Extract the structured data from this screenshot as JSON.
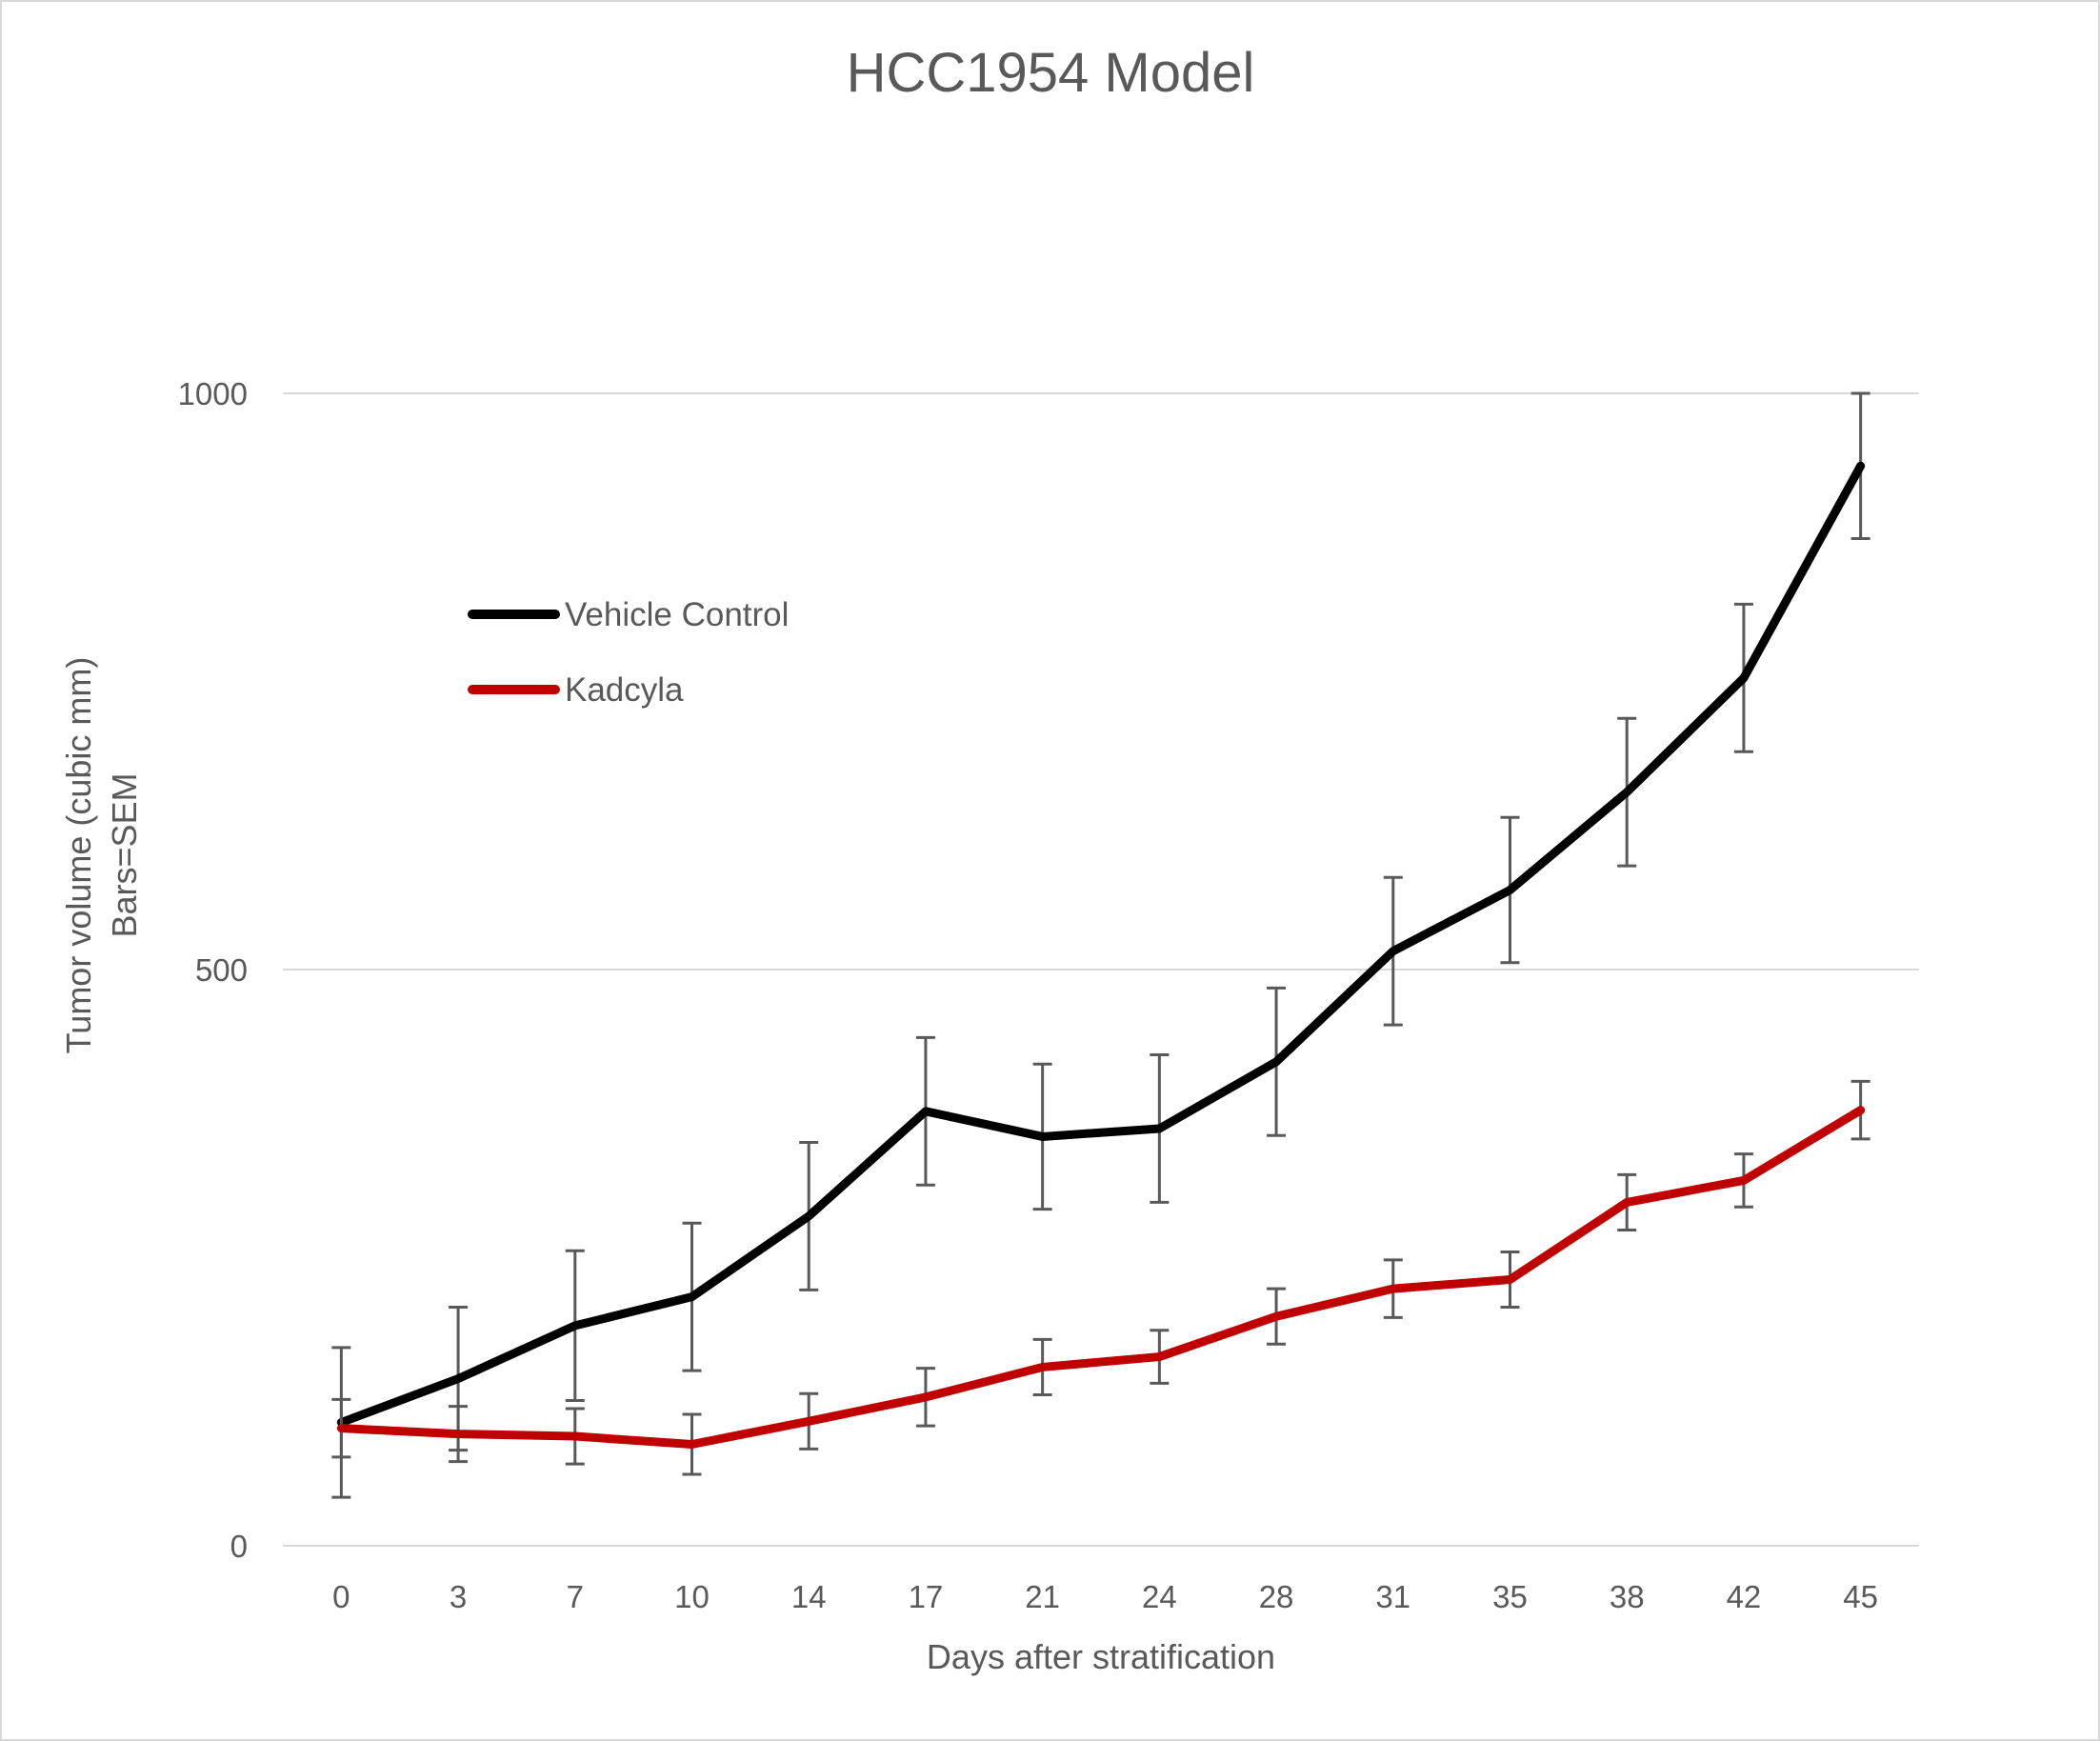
{
  "chart_data": {
    "type": "line",
    "title": "HCC1954 Model",
    "xlabel": "Days after stratification",
    "ylabel": [
      "Tumor volume (cubic mm)",
      "Bars=SEM"
    ],
    "categories": [
      "0",
      "3",
      "7",
      "10",
      "14",
      "17",
      "21",
      "24",
      "28",
      "31",
      "35",
      "38",
      "42",
      "45"
    ],
    "ylim": [
      0,
      1000
    ],
    "yticks": [
      0,
      500,
      1000
    ],
    "grid": true,
    "legend_position": "upper-left-inside",
    "error_bars": "SEM",
    "series": [
      {
        "name": "Vehicle Control",
        "color": "#000000",
        "values": [
          107,
          145,
          191,
          216,
          286,
          377,
          355,
          362,
          420,
          516,
          569,
          654,
          753,
          937
        ],
        "errors": [
          65,
          62,
          65,
          64,
          64,
          64,
          63,
          64,
          64,
          64,
          63,
          64,
          64,
          63
        ]
      },
      {
        "name": "Kadcyla",
        "color": "#C00000",
        "values": [
          102,
          97,
          95,
          88,
          108,
          129,
          155,
          164,
          199,
          223,
          231,
          298,
          317,
          378
        ],
        "errors": [
          25,
          24,
          24,
          26,
          24,
          25,
          24,
          23,
          24,
          25,
          24,
          24,
          23,
          25
        ]
      }
    ]
  },
  "colors": {
    "text": "#595959",
    "grid": "#d9d9d9",
    "error_bar": "#595959",
    "border": "#d9d9d9"
  }
}
